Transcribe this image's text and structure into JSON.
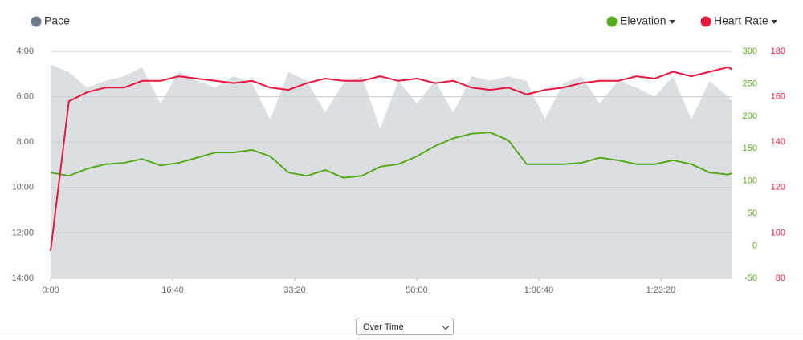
{
  "chart_data": {
    "type": "line",
    "x": [
      0,
      150,
      300,
      450,
      600,
      750,
      900,
      1050,
      1200,
      1350,
      1500,
      1650,
      1800,
      1950,
      2100,
      2250,
      2400,
      2550,
      2700,
      2850,
      3000,
      3150,
      3300,
      3450,
      3600,
      3750,
      3900,
      4050,
      4200,
      4350,
      4500,
      4650,
      4800,
      4950,
      5100,
      5250,
      5400,
      5550,
      5586
    ],
    "xlim": [
      0,
      5586
    ],
    "xticks": [
      {
        "value": 0,
        "label": "0:00"
      },
      {
        "value": 1000,
        "label": "16:40"
      },
      {
        "value": 2000,
        "label": "33:20"
      },
      {
        "value": 3000,
        "label": "50:00"
      },
      {
        "value": 4000,
        "label": "1:06:40"
      },
      {
        "value": 5000,
        "label": "1:23:20"
      }
    ],
    "ylim": [
      14,
      4
    ],
    "yticks": [
      {
        "value": 4,
        "label": "4:00"
      },
      {
        "value": 6,
        "label": "6:00"
      },
      {
        "value": 8,
        "label": "8:00"
      },
      {
        "value": 10,
        "label": "10:00"
      },
      {
        "value": 12,
        "label": "12:00"
      },
      {
        "value": 14,
        "label": "14:00"
      }
    ],
    "y2lim": [
      -50,
      300
    ],
    "y2ticks": [
      300,
      250,
      200,
      150,
      100,
      50,
      0,
      -50
    ],
    "y3lim": [
      80,
      180
    ],
    "y3ticks": [
      180,
      160,
      140,
      120,
      100,
      80
    ],
    "grid": true,
    "series": [
      {
        "name": "Pace",
        "color": "#dcdfe2",
        "axis": "y",
        "kind": "area",
        "values": [
          4.57,
          4.92,
          5.6,
          5.3,
          5.1,
          4.7,
          6.3,
          4.9,
          5.3,
          5.6,
          5.1,
          5.4,
          7.0,
          4.9,
          5.3,
          6.7,
          5.4,
          5.1,
          7.4,
          5.3,
          6.3,
          5.3,
          6.7,
          5.1,
          5.3,
          5.1,
          5.3,
          7.0,
          5.4,
          5.1,
          6.3,
          5.3,
          5.6,
          6.0,
          5.1,
          7.0,
          5.3,
          6.0,
          6.2
        ]
      },
      {
        "name": "Elevation",
        "color": "#5aaa1e",
        "axis": "y2",
        "kind": "line",
        "values": [
          113,
          108,
          119,
          126,
          128,
          134,
          124,
          128,
          136,
          144,
          144,
          148,
          138,
          113,
          108,
          117,
          105,
          108,
          122,
          126,
          138,
          154,
          166,
          173,
          175,
          163,
          126,
          126,
          126,
          128,
          136,
          132,
          126,
          126,
          132,
          126,
          113,
          110,
          112
        ]
      },
      {
        "name": "Heart Rate",
        "color": "#e8173f",
        "axis": "y3",
        "kind": "line",
        "values": [
          92,
          158,
          162,
          164,
          164,
          167,
          167,
          169,
          168,
          167,
          166,
          167,
          164,
          163,
          166,
          168,
          167,
          167,
          169,
          167,
          168,
          166,
          167,
          164,
          163,
          164,
          161,
          163,
          164,
          166,
          167,
          167,
          169,
          168,
          171,
          169,
          171,
          173,
          172
        ]
      }
    ]
  },
  "controls": {
    "view": "Over Time"
  }
}
